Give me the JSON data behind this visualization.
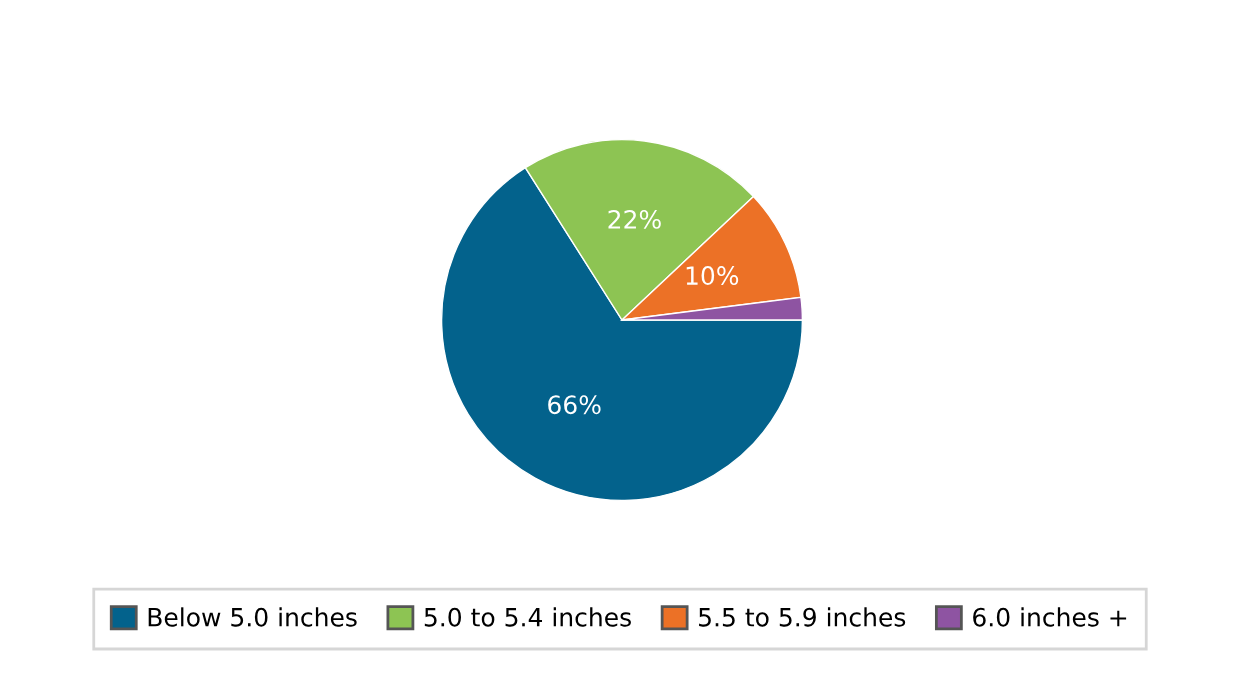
{
  "chart_data": {
    "type": "pie",
    "categories": [
      "Below 5.0 inches",
      "5.0 to 5.4 inches",
      "5.5 to 5.9 inches",
      "6.0 inches +"
    ],
    "values": [
      66,
      22,
      10,
      2
    ],
    "colors": [
      "#03628c",
      "#8dc453",
      "#ec7126",
      "#8e54a2"
    ],
    "value_labels": [
      "66%",
      "22%",
      "10%",
      null
    ],
    "legend": "bottom"
  }
}
